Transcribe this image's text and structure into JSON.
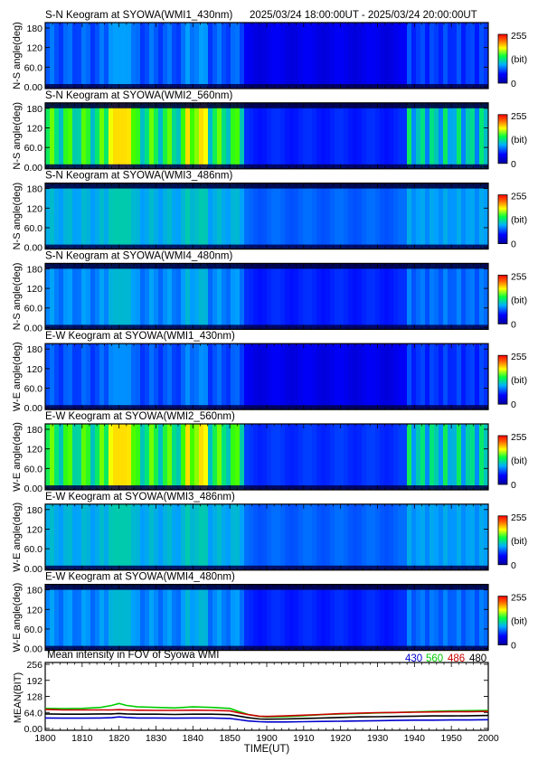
{
  "header": {
    "time_range": "2025/03/24 18:00:00UT - 2025/03/24 20:00:00UT"
  },
  "colorbar": {
    "max_label": "255",
    "unit_label": "(bit)",
    "min_label": "0"
  },
  "keograms": [
    {
      "title": "S-N Keogram at SYOWA(WMI1_430nm)",
      "ylabel": "N-S angle(deg)",
      "yticks": [
        "0.00",
        "60.0",
        "120",
        "180"
      ],
      "base": 0.15,
      "bright": 0.35,
      "style": "band",
      "top_edge": false
    },
    {
      "title": "S-N Keogram at SYOWA(WMI2_560nm)",
      "ylabel": "N-S angle(deg)",
      "yticks": [
        "0.00",
        "60.0",
        "120",
        "180"
      ],
      "base": 0.22,
      "bright": 0.78,
      "style": "arc",
      "top_edge": true
    },
    {
      "title": "S-N Keogram at SYOWA(WMI3_486nm)",
      "ylabel": "N-S angle(deg)",
      "yticks": [
        "0.00",
        "60.0",
        "120",
        "180"
      ],
      "base": 0.3,
      "bright": 0.44,
      "style": "band",
      "top_edge": true
    },
    {
      "title": "S-N Keogram at SYOWA(WMI4_480nm)",
      "ylabel": "N-S angle(deg)",
      "yticks": [
        "0.00",
        "60.0",
        "120",
        "180"
      ],
      "base": 0.22,
      "bright": 0.4,
      "style": "band",
      "top_edge": true
    },
    {
      "title": "E-W Keogram at SYOWA(WMI1_430nm)",
      "ylabel": "W-E angle(deg)",
      "yticks": [
        "0.00",
        "60.0",
        "120",
        "180"
      ],
      "base": 0.15,
      "bright": 0.33,
      "style": "band",
      "top_edge": false
    },
    {
      "title": "E-W Keogram at SYOWA(WMI2_560nm)",
      "ylabel": "W-E angle(deg)",
      "yticks": [
        "0.00",
        "60.0",
        "120",
        "180"
      ],
      "base": 0.24,
      "bright": 0.78,
      "style": "arc",
      "top_edge": false
    },
    {
      "title": "E-W Keogram at SYOWA(WMI3_486nm)",
      "ylabel": "W-E angle(deg)",
      "yticks": [
        "0.00",
        "60.0",
        "120",
        "180"
      ],
      "base": 0.3,
      "bright": 0.44,
      "style": "band",
      "top_edge": false
    },
    {
      "title": "E-W Keogram at SYOWA(WMI4_480nm)",
      "ylabel": "W-E angle(deg)",
      "yticks": [
        "0.00",
        "60.0",
        "120",
        "180"
      ],
      "base": 0.22,
      "bright": 0.4,
      "style": "band",
      "top_edge": true
    }
  ],
  "chart_data": {
    "type": "line",
    "title": "Mean intensity in FOV of Syowa WMI",
    "xlabel": "TIME(UT)",
    "ylabel": "MEAN(BIT)",
    "xticks": [
      "1800",
      "1810",
      "1820",
      "1830",
      "1840",
      "1850",
      "1900",
      "1910",
      "1920",
      "1930",
      "1940",
      "1950",
      "2000"
    ],
    "yticks": [
      "0.00",
      "64.0",
      "128",
      "192",
      "256"
    ],
    "xlim": [
      0,
      120
    ],
    "ylim": [
      0,
      256
    ],
    "x_unit": "minutes after 18:00 UT",
    "x": [
      0,
      5,
      10,
      15,
      18,
      20,
      22,
      25,
      30,
      35,
      40,
      45,
      50,
      52,
      55,
      58,
      60,
      65,
      70,
      75,
      80,
      85,
      90,
      95,
      100,
      105,
      110,
      115,
      120
    ],
    "series": [
      {
        "name": "430",
        "color": "#0000cc",
        "values": [
          42,
          41,
          41,
          42,
          43,
          46,
          44,
          42,
          42,
          41,
          42,
          42,
          40,
          36,
          30,
          27,
          26,
          26,
          27,
          28,
          29,
          30,
          31,
          32,
          33,
          33,
          34,
          34,
          35
        ]
      },
      {
        "name": "560",
        "color": "#00cc00",
        "values": [
          80,
          79,
          80,
          84,
          92,
          100,
          92,
          86,
          84,
          82,
          86,
          84,
          80,
          70,
          56,
          48,
          46,
          47,
          51,
          55,
          58,
          60,
          62,
          64,
          66,
          68,
          70,
          71,
          72
        ]
      },
      {
        "name": "486",
        "color": "#cc0000",
        "values": [
          76,
          74,
          74,
          74,
          74,
          75,
          74,
          73,
          72,
          72,
          73,
          72,
          70,
          64,
          55,
          49,
          48,
          50,
          53,
          56,
          59,
          61,
          63,
          64,
          65,
          66,
          67,
          67,
          68
        ]
      },
      {
        "name": "480",
        "color": "#000000",
        "values": [
          58,
          57,
          57,
          58,
          58,
          60,
          58,
          57,
          57,
          56,
          57,
          57,
          55,
          50,
          43,
          38,
          37,
          38,
          40,
          42,
          44,
          46,
          47,
          48,
          49,
          50,
          50,
          51,
          52
        ]
      }
    ]
  }
}
